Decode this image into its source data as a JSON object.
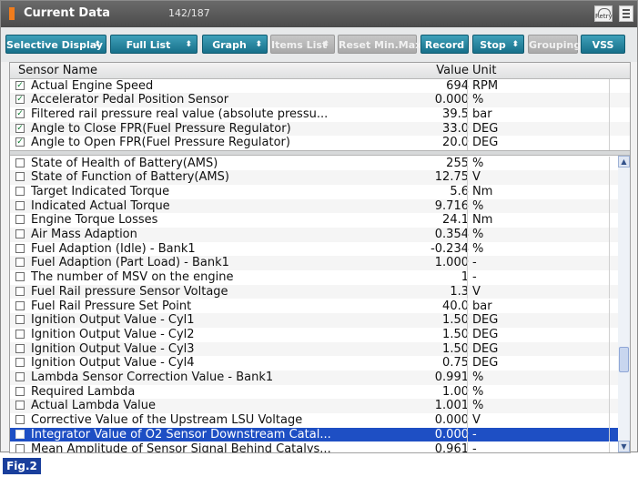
{
  "window": {
    "title": "Current Data",
    "count": "142/187",
    "retry_label": "Retry"
  },
  "toolbar": {
    "buttons": [
      {
        "label": "Selective Display",
        "dropdown": true,
        "enabled": true
      },
      {
        "label": "Full List",
        "dropdown": true,
        "enabled": true
      },
      {
        "label": "Graph",
        "dropdown": true,
        "enabled": true
      },
      {
        "label": "Items List",
        "dropdown": true,
        "enabled": false
      },
      {
        "label": "Reset Min.Max",
        "dropdown": false,
        "enabled": false
      },
      {
        "label": "Record",
        "dropdown": false,
        "enabled": true
      },
      {
        "label": "Stop",
        "dropdown": true,
        "enabled": true
      },
      {
        "label": "Grouping",
        "dropdown": false,
        "enabled": false
      },
      {
        "label": "VSS",
        "dropdown": false,
        "enabled": true
      }
    ]
  },
  "table": {
    "headers": {
      "name": "Sensor Name",
      "value": "Value",
      "unit": "Unit"
    },
    "pinned_rows": [
      {
        "checked": true,
        "name": "Actual Engine Speed",
        "value": "694",
        "unit": "RPM"
      },
      {
        "checked": true,
        "name": "Accelerator Pedal Position Sensor",
        "value": "0.000",
        "unit": "%"
      },
      {
        "checked": true,
        "name": "Filtered rail pressure real value (absolute pressu...",
        "value": "39.5",
        "unit": "bar"
      },
      {
        "checked": true,
        "name": "Angle to Close FPR(Fuel Pressure Regulator)",
        "value": "33.0",
        "unit": "DEG"
      },
      {
        "checked": true,
        "name": "Angle to Open FPR(Fuel Pressure Regulator)",
        "value": "20.0",
        "unit": "DEG"
      }
    ],
    "rows": [
      {
        "checked": false,
        "name": "State of Health of Battery(AMS)",
        "value": "255",
        "unit": "%"
      },
      {
        "checked": false,
        "name": "State of Function of Battery(AMS)",
        "value": "12.75",
        "unit": "V"
      },
      {
        "checked": false,
        "name": "Target Indicated Torque",
        "value": "5.6",
        "unit": "Nm"
      },
      {
        "checked": false,
        "name": "Indicated Actual Torque",
        "value": "9.716",
        "unit": "%"
      },
      {
        "checked": false,
        "name": "Engine Torque Losses",
        "value": "24.1",
        "unit": "Nm"
      },
      {
        "checked": false,
        "name": "Air Mass Adaption",
        "value": "0.354",
        "unit": "%"
      },
      {
        "checked": false,
        "name": "Fuel Adaption (Idle) - Bank1",
        "value": "-0.234",
        "unit": "%"
      },
      {
        "checked": false,
        "name": "Fuel Adaption (Part Load) - Bank1",
        "value": "1.000",
        "unit": "-"
      },
      {
        "checked": false,
        "name": "The number of MSV on the engine",
        "value": "1",
        "unit": "-"
      },
      {
        "checked": false,
        "name": "Fuel Rail pressure Sensor Voltage",
        "value": "1.3",
        "unit": "V"
      },
      {
        "checked": false,
        "name": "Fuel Rail Pressure Set Point",
        "value": "40.0",
        "unit": "bar"
      },
      {
        "checked": false,
        "name": "Ignition Output Value - Cyl1",
        "value": "1.50",
        "unit": "DEG"
      },
      {
        "checked": false,
        "name": "Ignition Output Value - Cyl2",
        "value": "1.50",
        "unit": "DEG"
      },
      {
        "checked": false,
        "name": "Ignition Output Value - Cyl3",
        "value": "1.50",
        "unit": "DEG"
      },
      {
        "checked": false,
        "name": "Ignition Output Value - Cyl4",
        "value": "0.75",
        "unit": "DEG"
      },
      {
        "checked": false,
        "name": "Lambda Sensor Correction Value - Bank1",
        "value": "0.991",
        "unit": "%"
      },
      {
        "checked": false,
        "name": "Required Lambda",
        "value": "1.00",
        "unit": "%"
      },
      {
        "checked": false,
        "name": "Actual Lambda Value",
        "value": "1.001",
        "unit": "%"
      },
      {
        "checked": false,
        "name": "Corrective Value of the Upstream LSU Voltage",
        "value": "0.000",
        "unit": "V"
      },
      {
        "checked": false,
        "name": "Integrator Value of O2 Sensor Downstream Catal...",
        "value": "0.000",
        "unit": "-",
        "selected": true
      },
      {
        "checked": false,
        "name": "Mean Amplitude of Sensor Signal Behind Catalys...",
        "value": "0.961",
        "unit": "-"
      }
    ]
  },
  "figure_label": "Fig.2",
  "colors": {
    "titlebar": "#4b4b4b",
    "button_active": "#17708a",
    "selection": "#1e4fc4",
    "figure_label": "#1a3f9c"
  }
}
